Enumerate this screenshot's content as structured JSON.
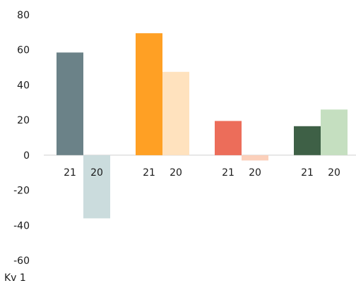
{
  "chart_data": {
    "type": "bar",
    "title": "",
    "xlabel": "",
    "ylabel": "",
    "ylim": [
      -60,
      80
    ],
    "yticks": [
      -60,
      -40,
      -20,
      0,
      20,
      40,
      60,
      80
    ],
    "grid": false,
    "legend": "none",
    "footnote": "Kv 1",
    "groups": [
      {
        "bars": [
          {
            "label": "21",
            "value": 58.5,
            "color": "#6b8288"
          },
          {
            "label": "20",
            "value": -36,
            "color": "#cbdcdd"
          }
        ]
      },
      {
        "bars": [
          {
            "label": "21",
            "value": 69.5,
            "color": "#ffa024"
          },
          {
            "label": "20",
            "value": 47.5,
            "color": "#ffe2be"
          }
        ]
      },
      {
        "bars": [
          {
            "label": "21",
            "value": 19.5,
            "color": "#ec6d5a"
          },
          {
            "label": "20",
            "value": -3,
            "color": "#fbd0bb"
          }
        ]
      },
      {
        "bars": [
          {
            "label": "21",
            "value": 16.5,
            "color": "#3e6046"
          },
          {
            "label": "20",
            "value": 26,
            "color": "#c5dfc0"
          }
        ]
      }
    ]
  }
}
